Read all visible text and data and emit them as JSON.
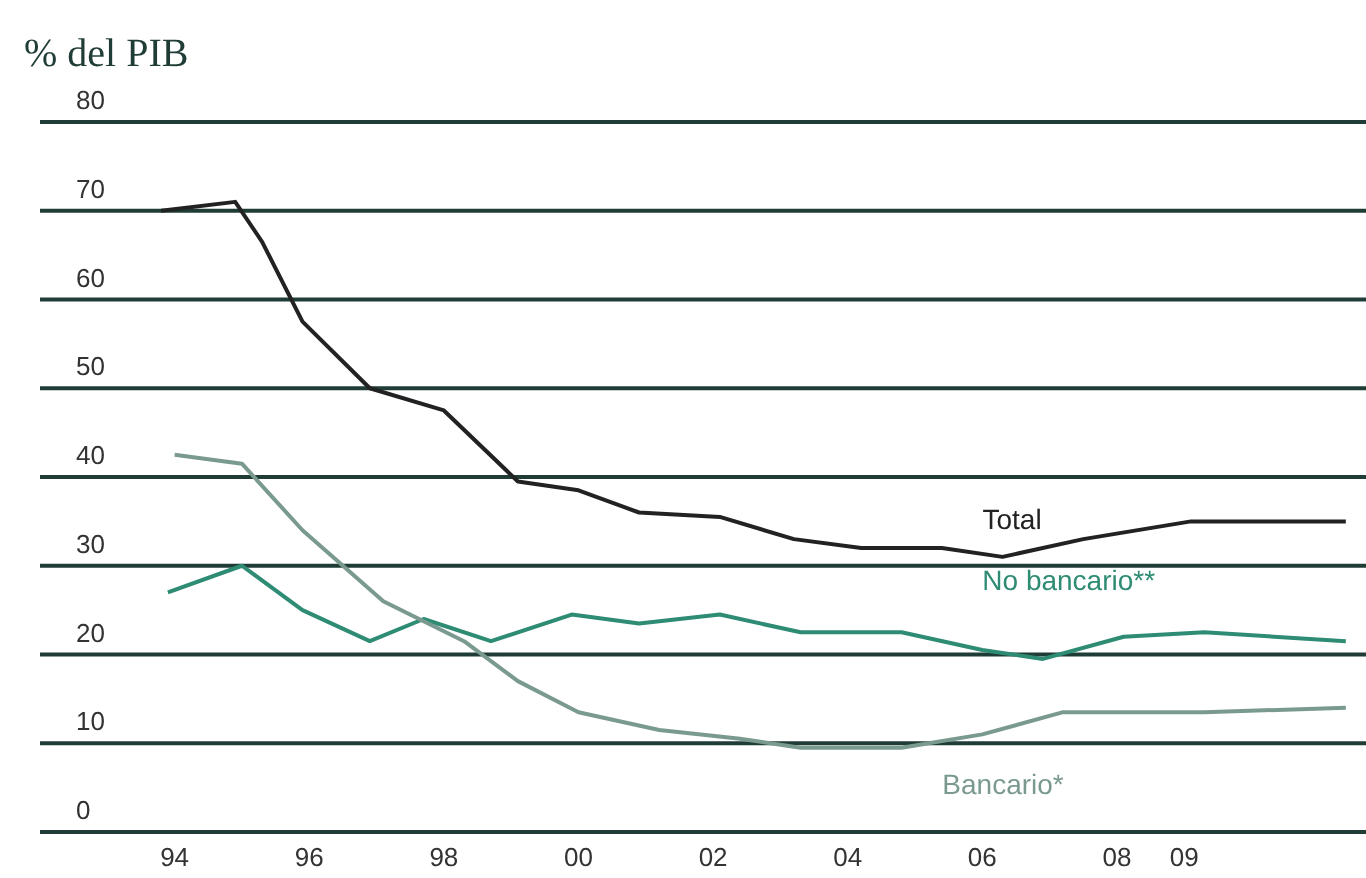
{
  "chart_data": {
    "type": "line",
    "ylabel": "% del PIB",
    "xlim": [
      1992,
      2011.7
    ],
    "xticks": [
      {
        "value": 1994,
        "label": "94"
      },
      {
        "value": 1996,
        "label": "96"
      },
      {
        "value": 1998,
        "label": "98"
      },
      {
        "value": 2000,
        "label": "00"
      },
      {
        "value": 2002,
        "label": "02"
      },
      {
        "value": 2004,
        "label": "04"
      },
      {
        "value": 2006,
        "label": "06"
      },
      {
        "value": 2008,
        "label": "08"
      },
      {
        "value": 2009,
        "label": "09"
      }
    ],
    "ylim": [
      0,
      80
    ],
    "yticks": [
      0,
      10,
      20,
      30,
      40,
      50,
      60,
      70,
      80
    ],
    "grid": "y",
    "legend": false,
    "marker": "none",
    "line_style": "solid",
    "series": [
      {
        "name": "Total",
        "color": "#222222",
        "x": [
          1993.8,
          1994.9,
          1995.3,
          1995.9,
          1996.9,
          1998.0,
          1999.1,
          2000.0,
          2000.9,
          2002.1,
          2003.2,
          2004.2,
          2005.4,
          2006.3,
          2007.5,
          2009.1,
          2011.4
        ],
        "values": [
          70,
          71,
          66.5,
          57.5,
          50,
          47.5,
          39.5,
          38.5,
          36,
          35.5,
          33,
          32,
          32,
          31,
          33,
          35,
          35
        ]
      },
      {
        "name": "No bancario**",
        "color": "#2e8b74",
        "x": [
          1993.9,
          1995.0,
          1995.9,
          1996.9,
          1997.7,
          1998.7,
          1999.9,
          2000.9,
          2002.1,
          2003.3,
          2004.8,
          2006.0,
          2006.9,
          2008.1,
          2009.3,
          2011.4
        ],
        "values": [
          27,
          30,
          25,
          21.5,
          24,
          21.5,
          24.5,
          23.5,
          24.5,
          22.5,
          22.5,
          20.5,
          19.5,
          22,
          22.5,
          21.5
        ]
      },
      {
        "name": "Bancario*",
        "color": "#7a9a90",
        "x": [
          1994.0,
          1995.0,
          1995.9,
          1997.1,
          1998.3,
          1999.1,
          2000.0,
          2001.2,
          2002.4,
          2003.3,
          2004.8,
          2006.0,
          2007.2,
          2009.3,
          2011.4
        ],
        "values": [
          42.5,
          41.5,
          34,
          26,
          21.5,
          17,
          13.5,
          11.5,
          10.5,
          9.5,
          9.5,
          11,
          13.5,
          13.5,
          14
        ]
      }
    ]
  }
}
